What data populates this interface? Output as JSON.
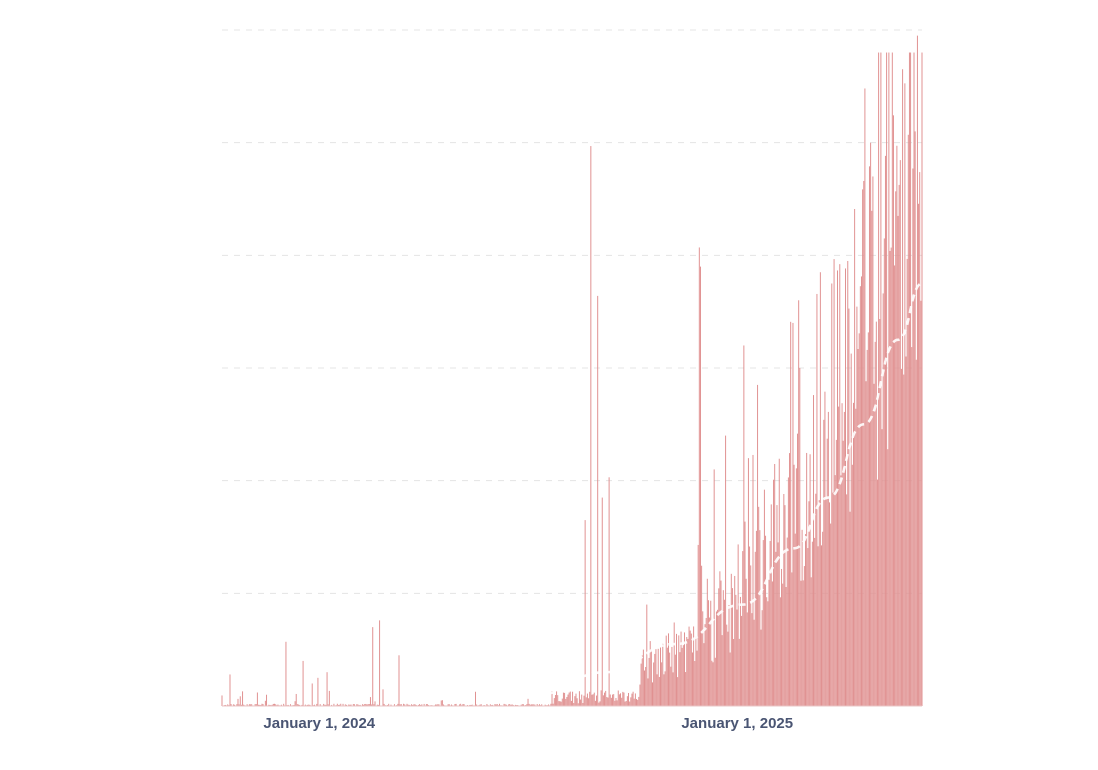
{
  "chart_data": {
    "type": "bar",
    "title": "",
    "xlabel": "",
    "ylabel": "",
    "x_range": [
      "2023-12-01",
      "2025-08-05"
    ],
    "ylim": [
      0,
      6
    ],
    "grid": true,
    "y_gridlines": [
      1,
      2,
      3,
      4,
      5,
      6
    ],
    "x_tick_labels": [
      {
        "date": "2024-01-01",
        "label": "January 1, 2024"
      },
      {
        "date": "2025-01-01",
        "label": "January 1, 2025"
      }
    ],
    "bar_color": "#e09090",
    "trend_color": "#ffffff",
    "series": [
      {
        "type": "bar",
        "bin": "daily",
        "start_date": "2023-12-01",
        "end_date": "2025-08-05",
        "values": {
          "2023-12-01..2024-10-31": "near 0 (mostly 0 to 0.05)",
          "2024-11-01..2025-01-31": "0.05 to 0.5",
          "2025-02-01..2025-05-31": "0.5 to 3",
          "2025-06-01..2025-08-05": "2 to 6"
        },
        "peaks": [
          {
            "date": "2023-12-08",
            "value": 0.28
          },
          {
            "date": "2023-12-19",
            "value": 0.13
          },
          {
            "date": "2024-01-09",
            "value": 0.1
          },
          {
            "date": "2024-01-26",
            "value": 0.57
          },
          {
            "date": "2024-02-10",
            "value": 0.4
          },
          {
            "date": "2024-02-18",
            "value": 0.2
          },
          {
            "date": "2024-02-23",
            "value": 0.25
          },
          {
            "date": "2024-03-02",
            "value": 0.3
          },
          {
            "date": "2024-04-11",
            "value": 0.7
          },
          {
            "date": "2024-04-17",
            "value": 0.76
          },
          {
            "date": "2024-05-04",
            "value": 0.45
          },
          {
            "date": "2024-10-14",
            "value": 1.65
          },
          {
            "date": "2024-10-19",
            "value": 4.97
          },
          {
            "date": "2024-10-25",
            "value": 3.64
          },
          {
            "date": "2024-10-29",
            "value": 1.85
          },
          {
            "date": "2024-11-04",
            "value": 2.03
          },
          {
            "date": "2025-01-22",
            "value": 4.07
          },
          {
            "date": "2025-01-23",
            "value": 3.9
          },
          {
            "date": "2025-02-04",
            "value": 2.1
          },
          {
            "date": "2025-02-14",
            "value": 2.4
          },
          {
            "date": "2025-03-02",
            "value": 3.2
          },
          {
            "date": "2025-03-06",
            "value": 2.2
          },
          {
            "date": "2025-03-14",
            "value": 2.85
          },
          {
            "date": "2025-04-14",
            "value": 3.4
          },
          {
            "date": "2025-04-20",
            "value": 3.0
          },
          {
            "date": "2025-05-08",
            "value": 3.85
          },
          {
            "date": "2025-05-18",
            "value": 3.75
          },
          {
            "date": "2025-06-01",
            "value": 3.95
          },
          {
            "date": "2025-06-15",
            "value": 4.66
          },
          {
            "date": "2025-06-23",
            "value": 4.7
          },
          {
            "date": "2025-07-03",
            "value": 4.15
          },
          {
            "date": "2025-07-15",
            "value": 4.35
          },
          {
            "date": "2025-07-24",
            "value": 5.07
          },
          {
            "date": "2025-07-30",
            "value": 5.1
          },
          {
            "date": "2025-08-01",
            "value": 5.95
          }
        ]
      },
      {
        "type": "line",
        "style": "dashed",
        "points": [
          {
            "date": "2024-07-01",
            "value": 0.02
          },
          {
            "date": "2024-09-01",
            "value": 0.1
          },
          {
            "date": "2024-11-01",
            "value": 0.3
          },
          {
            "date": "2025-01-01",
            "value": 0.55
          },
          {
            "date": "2025-03-01",
            "value": 0.9
          },
          {
            "date": "2025-04-15",
            "value": 1.4
          },
          {
            "date": "2025-05-15",
            "value": 1.85
          },
          {
            "date": "2025-06-15",
            "value": 2.5
          },
          {
            "date": "2025-07-15",
            "value": 3.25
          },
          {
            "date": "2025-08-05",
            "value": 3.75
          }
        ]
      }
    ]
  }
}
